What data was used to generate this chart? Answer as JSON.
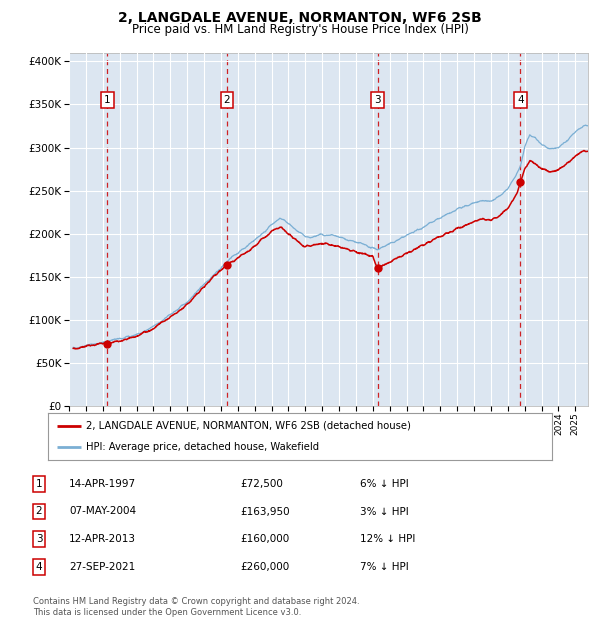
{
  "title": "2, LANGDALE AVENUE, NORMANTON, WF6 2SB",
  "subtitle": "Price paid vs. HM Land Registry's House Price Index (HPI)",
  "plot_bg_color": "#dce6f1",
  "hpi_line_color": "#7bafd4",
  "price_line_color": "#cc0000",
  "sale_marker_color": "#cc0000",
  "dashed_line_color": "#cc0000",
  "ylim": [
    0,
    410000
  ],
  "yticks": [
    0,
    50000,
    100000,
    150000,
    200000,
    250000,
    300000,
    350000,
    400000
  ],
  "ytick_labels": [
    "£0",
    "£50K",
    "£100K",
    "£150K",
    "£200K",
    "£250K",
    "£300K",
    "£350K",
    "£400K"
  ],
  "legend_line1": "2, LANGDALE AVENUE, NORMANTON, WF6 2SB (detached house)",
  "legend_line2": "HPI: Average price, detached house, Wakefield",
  "sales": [
    {
      "num": 1,
      "date": "14-APR-1997",
      "year": 1997.28,
      "price": 72500
    },
    {
      "num": 2,
      "date": "07-MAY-2004",
      "year": 2004.36,
      "price": 163950
    },
    {
      "num": 3,
      "date": "12-APR-2013",
      "year": 2013.28,
      "price": 160000
    },
    {
      "num": 4,
      "date": "27-SEP-2021",
      "year": 2021.74,
      "price": 260000
    }
  ],
  "table_rows": [
    {
      "num": 1,
      "date": "14-APR-1997",
      "price": "£72,500",
      "hpi": "6% ↓ HPI"
    },
    {
      "num": 2,
      "date": "07-MAY-2004",
      "price": "£163,950",
      "hpi": "3% ↓ HPI"
    },
    {
      "num": 3,
      "date": "12-APR-2013",
      "price": "£160,000",
      "hpi": "12% ↓ HPI"
    },
    {
      "num": 4,
      "date": "27-SEP-2021",
      "price": "£260,000",
      "hpi": "7% ↓ HPI"
    }
  ],
  "footer": "Contains HM Land Registry data © Crown copyright and database right 2024.\nThis data is licensed under the Open Government Licence v3.0.",
  "xmin": 1995.25,
  "xmax": 2025.75,
  "hpi_anchors_x": [
    1995.25,
    1995.5,
    1996.0,
    1996.5,
    1997.0,
    1997.3,
    1997.5,
    1998.0,
    1998.5,
    1999.0,
    1999.5,
    2000.0,
    2000.5,
    2001.0,
    2001.5,
    2002.0,
    2002.5,
    2003.0,
    2003.5,
    2004.0,
    2004.5,
    2005.0,
    2005.5,
    2006.0,
    2006.5,
    2007.0,
    2007.5,
    2008.0,
    2008.5,
    2009.0,
    2009.3,
    2009.5,
    2010.0,
    2010.5,
    2011.0,
    2011.5,
    2012.0,
    2012.5,
    2013.0,
    2013.3,
    2013.5,
    2014.0,
    2014.5,
    2015.0,
    2015.5,
    2016.0,
    2016.5,
    2017.0,
    2017.5,
    2018.0,
    2018.5,
    2019.0,
    2019.5,
    2020.0,
    2020.5,
    2021.0,
    2021.5,
    2021.74,
    2022.0,
    2022.3,
    2022.6,
    2023.0,
    2023.5,
    2024.0,
    2024.5,
    2025.0,
    2025.5
  ],
  "hpi_anchors_y": [
    67000,
    68000,
    70500,
    72000,
    73500,
    75000,
    76500,
    78000,
    80000,
    83000,
    87000,
    92000,
    99000,
    106000,
    113000,
    121000,
    131000,
    142000,
    151000,
    160000,
    170000,
    178000,
    185000,
    193000,
    201000,
    210000,
    218000,
    212000,
    203000,
    196000,
    195000,
    197000,
    199000,
    198000,
    196000,
    193000,
    190000,
    187000,
    183000,
    182000,
    184000,
    188000,
    193000,
    198000,
    203000,
    208000,
    213000,
    218000,
    223000,
    228000,
    232000,
    236000,
    239000,
    237000,
    243000,
    252000,
    268000,
    278000,
    300000,
    315000,
    312000,
    304000,
    298000,
    300000,
    308000,
    318000,
    325000
  ],
  "red_anchors_x": [
    1995.25,
    1995.5,
    1996.0,
    1996.5,
    1997.0,
    1997.28,
    1997.5,
    1998.0,
    1998.5,
    1999.0,
    1999.5,
    2000.0,
    2000.5,
    2001.0,
    2001.5,
    2002.0,
    2002.5,
    2003.0,
    2003.5,
    2004.0,
    2004.36,
    2004.8,
    2005.0,
    2005.5,
    2006.0,
    2006.5,
    2007.0,
    2007.5,
    2008.0,
    2008.5,
    2009.0,
    2009.5,
    2010.0,
    2010.5,
    2011.0,
    2011.5,
    2012.0,
    2012.5,
    2013.0,
    2013.28,
    2013.5,
    2014.0,
    2014.5,
    2015.0,
    2015.5,
    2016.0,
    2016.5,
    2017.0,
    2017.5,
    2018.0,
    2018.5,
    2019.0,
    2019.5,
    2020.0,
    2020.5,
    2021.0,
    2021.5,
    2021.74,
    2022.0,
    2022.3,
    2022.6,
    2023.0,
    2023.5,
    2024.0,
    2024.5,
    2025.0,
    2025.5
  ],
  "red_anchors_y": [
    66000,
    67000,
    69500,
    71000,
    72000,
    72500,
    74000,
    76000,
    78000,
    81000,
    85000,
    90000,
    97000,
    103000,
    110000,
    118000,
    128000,
    138000,
    149000,
    158000,
    163950,
    168000,
    172000,
    178000,
    186000,
    194000,
    202000,
    208000,
    200000,
    192000,
    185000,
    187000,
    188000,
    187000,
    185000,
    182000,
    179000,
    176000,
    173000,
    160000,
    162000,
    167000,
    172000,
    177000,
    182000,
    187000,
    192000,
    197000,
    201000,
    206000,
    210000,
    214000,
    217000,
    215000,
    221000,
    230000,
    245000,
    260000,
    275000,
    285000,
    282000,
    276000,
    272000,
    274000,
    281000,
    290000,
    296000
  ]
}
